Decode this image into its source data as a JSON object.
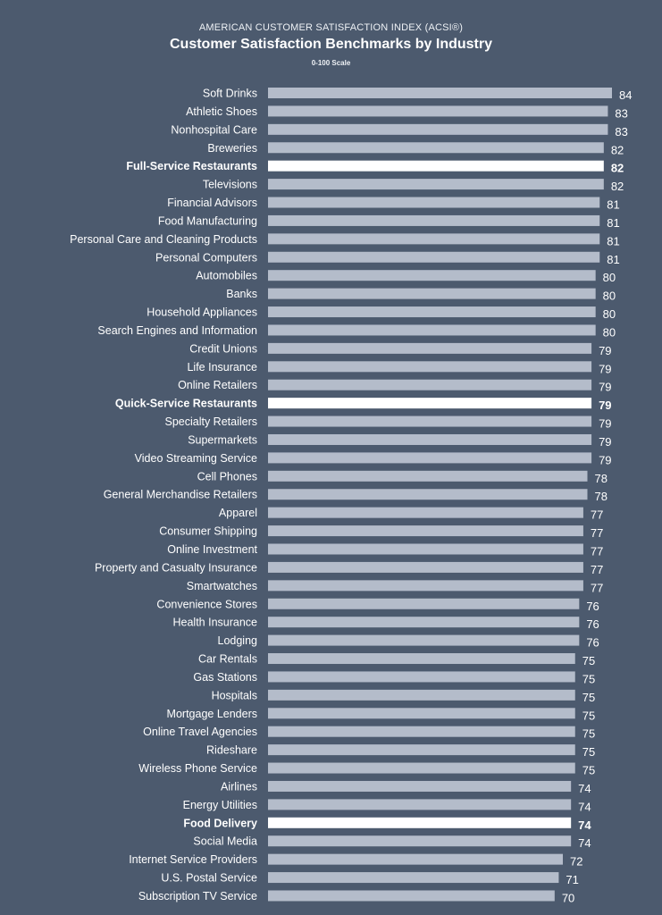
{
  "header": {
    "supertitle": "AMERICAN CUSTOMER SATISFACTION INDEX (ACSI®)",
    "title": "Customer Satisfaction Benchmarks by Industry",
    "subtitle": "0-100 Scale"
  },
  "colors": {
    "background": "#4c5a6e",
    "bar": "#b4bcca",
    "bar_highlight": "#ffffff",
    "text": "#ffffff"
  },
  "chart_data": {
    "type": "bar",
    "orientation": "horizontal",
    "title": "Customer Satisfaction Benchmarks by Industry",
    "subtitle": "0-100 Scale",
    "xlim": [
      0,
      100
    ],
    "grid": false,
    "categories": [
      "Soft Drinks",
      "Athletic Shoes",
      "Nonhospital Care",
      "Breweries",
      "Full-Service Restaurants",
      "Televisions",
      "Financial Advisors",
      "Food Manufacturing",
      "Personal Care and Cleaning Products",
      "Personal Computers",
      "Automobiles",
      "Banks",
      "Household Appliances",
      "Search Engines and Information",
      "Credit Unions",
      "Life Insurance",
      "Online Retailers",
      "Quick-Service Restaurants",
      "Specialty Retailers",
      "Supermarkets",
      "Video Streaming Service",
      "Cell Phones",
      "General Merchandise Retailers",
      "Apparel",
      "Consumer Shipping",
      "Online Investment",
      "Property and Casualty Insurance",
      "Smartwatches",
      "Convenience Stores",
      "Health Insurance",
      "Lodging",
      "Car Rentals",
      "Gas Stations",
      "Hospitals",
      "Mortgage Lenders",
      "Online Travel Agencies",
      "Rideshare",
      "Wireless Phone Service",
      "Airlines",
      "Energy Utilities",
      "Food Delivery",
      "Social Media",
      "Internet Service Providers",
      "U.S. Postal Service",
      "Subscription TV Service"
    ],
    "values": [
      84,
      83,
      83,
      82,
      82,
      82,
      81,
      81,
      81,
      81,
      80,
      80,
      80,
      80,
      79,
      79,
      79,
      79,
      79,
      79,
      79,
      78,
      78,
      77,
      77,
      77,
      77,
      77,
      76,
      76,
      76,
      75,
      75,
      75,
      75,
      75,
      75,
      75,
      74,
      74,
      74,
      74,
      72,
      71,
      70
    ],
    "highlighted": [
      "Full-Service Restaurants",
      "Quick-Service Restaurants",
      "Food Delivery"
    ]
  }
}
